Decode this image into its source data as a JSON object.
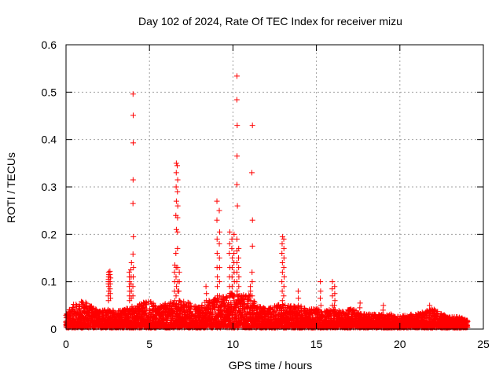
{
  "chart_data": {
    "type": "scatter",
    "title": "Day 102 of 2024, Rate Of TEC Index for receiver mizu",
    "xlabel": "GPS time / hours",
    "ylabel": "ROTI / TECUs",
    "xlim": [
      0,
      25
    ],
    "ylim": [
      0,
      0.6
    ],
    "xticks": [
      0,
      5,
      10,
      15,
      20,
      25
    ],
    "yticks": [
      0,
      0.1,
      0.2,
      0.3,
      0.4,
      0.5,
      0.6
    ],
    "xtick_labels": [
      "0",
      "5",
      "10",
      "15",
      "20",
      "25"
    ],
    "ytick_labels": [
      "0",
      "0.1",
      "0.2",
      "0.3",
      "0.4",
      "0.5",
      "0.6"
    ],
    "grid": true,
    "marker": "+",
    "marker_color": "#ff0000",
    "baseline_band": [
      [
        0.0,
        0.025
      ],
      [
        0.5,
        0.045
      ],
      [
        1.0,
        0.05
      ],
      [
        1.5,
        0.04
      ],
      [
        2.0,
        0.03
      ],
      [
        2.5,
        0.035
      ],
      [
        3.0,
        0.03
      ],
      [
        3.5,
        0.035
      ],
      [
        4.0,
        0.04
      ],
      [
        4.5,
        0.045
      ],
      [
        5.0,
        0.05
      ],
      [
        5.5,
        0.04
      ],
      [
        6.0,
        0.045
      ],
      [
        6.5,
        0.05
      ],
      [
        7.0,
        0.05
      ],
      [
        7.5,
        0.045
      ],
      [
        8.0,
        0.04
      ],
      [
        8.5,
        0.05
      ],
      [
        9.0,
        0.055
      ],
      [
        9.5,
        0.06
      ],
      [
        10.0,
        0.065
      ],
      [
        10.5,
        0.06
      ],
      [
        11.0,
        0.06
      ],
      [
        11.5,
        0.04
      ],
      [
        12.0,
        0.035
      ],
      [
        12.5,
        0.04
      ],
      [
        13.0,
        0.045
      ],
      [
        13.5,
        0.04
      ],
      [
        14.0,
        0.04
      ],
      [
        14.5,
        0.035
      ],
      [
        15.0,
        0.035
      ],
      [
        15.5,
        0.03
      ],
      [
        16.0,
        0.035
      ],
      [
        16.5,
        0.03
      ],
      [
        17.0,
        0.035
      ],
      [
        17.5,
        0.03
      ],
      [
        18.0,
        0.025
      ],
      [
        18.5,
        0.025
      ],
      [
        19.0,
        0.025
      ],
      [
        19.5,
        0.025
      ],
      [
        20.0,
        0.02
      ],
      [
        20.5,
        0.025
      ],
      [
        21.0,
        0.025
      ],
      [
        21.5,
        0.03
      ],
      [
        22.0,
        0.035
      ],
      [
        22.5,
        0.025
      ],
      [
        23.0,
        0.02
      ],
      [
        23.5,
        0.02
      ],
      [
        24.0,
        0.015
      ]
    ],
    "spikes": [
      {
        "x": 2.55,
        "ys": [
          0.06,
          0.07,
          0.08,
          0.09,
          0.095,
          0.1,
          0.105,
          0.11,
          0.115,
          0.12
        ]
      },
      {
        "x": 2.65,
        "ys": [
          0.065,
          0.075,
          0.085,
          0.095,
          0.1,
          0.108,
          0.115,
          0.122
        ]
      },
      {
        "x": 3.8,
        "ys": [
          0.06,
          0.07,
          0.08,
          0.09,
          0.1,
          0.11,
          0.12
        ]
      },
      {
        "x": 3.9,
        "ys": [
          0.065,
          0.08,
          0.095,
          0.11,
          0.125,
          0.14
        ]
      },
      {
        "x": 4.02,
        "ys": [
          0.07,
          0.09,
          0.11,
          0.13,
          0.158,
          0.195,
          0.265,
          0.315,
          0.393,
          0.451,
          0.496
        ]
      },
      {
        "x": 6.5,
        "ys": [
          0.06,
          0.08,
          0.1,
          0.12,
          0.135
        ]
      },
      {
        "x": 6.6,
        "ys": [
          0.07,
          0.09,
          0.11,
          0.13,
          0.16,
          0.21,
          0.24,
          0.27,
          0.3,
          0.33,
          0.35
        ]
      },
      {
        "x": 6.68,
        "ys": [
          0.08,
          0.1,
          0.13,
          0.17,
          0.205,
          0.235,
          0.26,
          0.29,
          0.315,
          0.345
        ]
      },
      {
        "x": 6.78,
        "ys": [
          0.06,
          0.08,
          0.1,
          0.12
        ]
      },
      {
        "x": 9.05,
        "ys": [
          0.07,
          0.09,
          0.11,
          0.13,
          0.16,
          0.19,
          0.23,
          0.27
        ]
      },
      {
        "x": 9.2,
        "ys": [
          0.07,
          0.1,
          0.13,
          0.15,
          0.18,
          0.205,
          0.25
        ]
      },
      {
        "x": 9.8,
        "ys": [
          0.07,
          0.09,
          0.11,
          0.13,
          0.16,
          0.18,
          0.205
        ]
      },
      {
        "x": 9.95,
        "ys": [
          0.07,
          0.09,
          0.11,
          0.13,
          0.15,
          0.17,
          0.19
        ]
      },
      {
        "x": 10.08,
        "ys": [
          0.07,
          0.1,
          0.12,
          0.14,
          0.16,
          0.2
        ]
      },
      {
        "x": 10.25,
        "ys": [
          0.08,
          0.1,
          0.12,
          0.14,
          0.165,
          0.19,
          0.26,
          0.305,
          0.365,
          0.43,
          0.484,
          0.534
        ]
      },
      {
        "x": 10.35,
        "ys": [
          0.07,
          0.09,
          0.11,
          0.13,
          0.15,
          0.17
        ]
      },
      {
        "x": 11.05,
        "ys": [
          0.06,
          0.07,
          0.08,
          0.09
        ]
      },
      {
        "x": 11.15,
        "ys": [
          0.07,
          0.1,
          0.12,
          0.175,
          0.23,
          0.33,
          0.43
        ]
      },
      {
        "x": 12.95,
        "ys": [
          0.06,
          0.08,
          0.1,
          0.12,
          0.14,
          0.16,
          0.18,
          0.195
        ]
      },
      {
        "x": 13.05,
        "ys": [
          0.07,
          0.09,
          0.11,
          0.13,
          0.15,
          0.17,
          0.19
        ]
      },
      {
        "x": 15.25,
        "ys": [
          0.05,
          0.065,
          0.08,
          0.1
        ]
      },
      {
        "x": 15.95,
        "ys": [
          0.05,
          0.07,
          0.085,
          0.1
        ]
      },
      {
        "x": 16.1,
        "ys": [
          0.05,
          0.06,
          0.075,
          0.09
        ]
      },
      {
        "x": 8.4,
        "ys": [
          0.06,
          0.075,
          0.09
        ]
      },
      {
        "x": 13.9,
        "ys": [
          0.05,
          0.065,
          0.08
        ]
      },
      {
        "x": 17.6,
        "ys": [
          0.045,
          0.055
        ]
      },
      {
        "x": 19.0,
        "ys": [
          0.04,
          0.05
        ]
      },
      {
        "x": 21.8,
        "ys": [
          0.04,
          0.05
        ]
      }
    ]
  }
}
